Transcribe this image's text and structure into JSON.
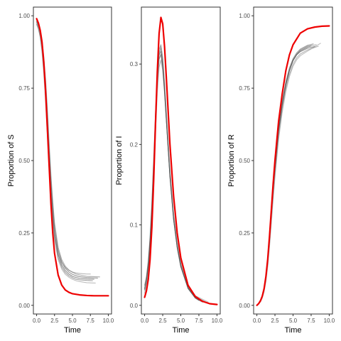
{
  "chart_data": [
    {
      "type": "line",
      "xlabel": "Time",
      "ylabel": "Proportion of S",
      "xlim": [
        0,
        10
      ],
      "ylim": [
        0,
        1
      ],
      "x_ticks": [
        0,
        2.5,
        5,
        7.5,
        10
      ],
      "x_tick_labels": [
        "0.0",
        "2.5",
        "5.0",
        "7.5",
        "10.0"
      ],
      "y_ticks": [
        0,
        0.25,
        0.5,
        0.75,
        1
      ],
      "y_tick_labels": [
        "0.00",
        "0.25",
        "0.50",
        "0.75",
        "1.00"
      ],
      "grid": false,
      "series": [
        {
          "role": "deterministic",
          "color": "#ee0000",
          "x": [
            0,
            0.25,
            0.5,
            0.75,
            1,
            1.25,
            1.5,
            1.75,
            2,
            2.25,
            2.5,
            3,
            3.5,
            4,
            4.5,
            5,
            6,
            7,
            8,
            9,
            10
          ],
          "y": [
            0.99,
            0.975,
            0.95,
            0.91,
            0.84,
            0.74,
            0.61,
            0.48,
            0.35,
            0.25,
            0.18,
            0.105,
            0.07,
            0.053,
            0.045,
            0.04,
            0.036,
            0.034,
            0.033,
            0.033,
            0.033
          ]
        },
        {
          "role": "stochastic",
          "color": "#333333",
          "x": [
            0,
            0.25,
            0.5,
            0.75,
            1,
            1.25,
            1.5,
            1.75,
            2,
            2.25,
            2.5,
            3,
            3.5,
            4,
            4.5,
            5,
            5.5,
            6,
            7,
            8
          ],
          "y": [
            0.98,
            0.965,
            0.94,
            0.9,
            0.84,
            0.75,
            0.64,
            0.52,
            0.41,
            0.32,
            0.25,
            0.175,
            0.14,
            0.12,
            0.108,
            0.1,
            0.096,
            0.093,
            0.091,
            0.09
          ]
        },
        {
          "role": "stochastic",
          "color": "#555555",
          "x": [
            0,
            0.25,
            0.5,
            0.75,
            1,
            1.25,
            1.5,
            1.75,
            2,
            2.25,
            2.5,
            3,
            3.5,
            4,
            4.5,
            5,
            5.5,
            6,
            7,
            7.8
          ],
          "y": [
            0.97,
            0.955,
            0.93,
            0.88,
            0.81,
            0.72,
            0.61,
            0.49,
            0.38,
            0.3,
            0.235,
            0.165,
            0.132,
            0.113,
            0.102,
            0.095,
            0.09,
            0.088,
            0.086,
            0.085
          ]
        },
        {
          "role": "stochastic",
          "color": "#444444",
          "x": [
            0,
            0.25,
            0.5,
            0.75,
            1,
            1.25,
            1.5,
            1.75,
            2,
            2.25,
            2.5,
            3,
            3.5,
            4,
            4.5,
            5,
            5.5,
            6,
            7,
            8.5
          ],
          "y": [
            0.985,
            0.97,
            0.945,
            0.91,
            0.85,
            0.77,
            0.66,
            0.54,
            0.43,
            0.34,
            0.27,
            0.19,
            0.15,
            0.128,
            0.115,
            0.107,
            0.102,
            0.099,
            0.096,
            0.094
          ]
        },
        {
          "role": "stochastic",
          "color": "#777777",
          "x": [
            0,
            0.25,
            0.5,
            0.75,
            1,
            1.25,
            1.5,
            1.75,
            2,
            2.25,
            2.5,
            3,
            3.5,
            4,
            4.5,
            5,
            5.5,
            6,
            7,
            7.5
          ],
          "y": [
            0.98,
            0.96,
            0.93,
            0.89,
            0.82,
            0.73,
            0.62,
            0.5,
            0.39,
            0.31,
            0.245,
            0.18,
            0.148,
            0.131,
            0.121,
            0.115,
            0.112,
            0.11,
            0.108,
            0.108
          ]
        },
        {
          "role": "stochastic",
          "color": "#888888",
          "x": [
            0,
            0.25,
            0.5,
            0.75,
            1,
            1.25,
            1.5,
            1.75,
            2,
            2.25,
            2.5,
            3,
            3.5,
            4,
            4.5,
            5,
            5.5,
            6,
            7,
            8.2
          ],
          "y": [
            0.975,
            0.955,
            0.925,
            0.875,
            0.8,
            0.7,
            0.59,
            0.47,
            0.365,
            0.285,
            0.225,
            0.158,
            0.125,
            0.107,
            0.097,
            0.09,
            0.085,
            0.082,
            0.078,
            0.077
          ]
        },
        {
          "role": "stochastic",
          "color": "#666666",
          "x": [
            0,
            0.25,
            0.5,
            0.75,
            1,
            1.25,
            1.5,
            1.75,
            2,
            2.25,
            2.5,
            3,
            3.5,
            4,
            4.5,
            5,
            5.5,
            6,
            7,
            8.8
          ],
          "y": [
            0.99,
            0.975,
            0.95,
            0.915,
            0.86,
            0.78,
            0.68,
            0.56,
            0.45,
            0.36,
            0.285,
            0.2,
            0.158,
            0.135,
            0.122,
            0.114,
            0.108,
            0.105,
            0.1,
            0.098
          ]
        }
      ]
    },
    {
      "type": "line",
      "xlabel": "Time",
      "ylabel": "Proportion of I",
      "xlim": [
        0,
        10
      ],
      "ylim": [
        0,
        0.36
      ],
      "x_ticks": [
        0,
        2.5,
        5,
        7.5,
        10
      ],
      "x_tick_labels": [
        "0.0",
        "2.5",
        "5.0",
        "7.5",
        "10.0"
      ],
      "y_ticks": [
        0,
        0.1,
        0.2,
        0.3
      ],
      "y_tick_labels": [
        "0.0",
        "0.1",
        "0.2",
        "0.3"
      ],
      "grid": false,
      "series": [
        {
          "role": "deterministic",
          "color": "#ee0000",
          "x": [
            0,
            0.25,
            0.5,
            0.75,
            1,
            1.25,
            1.5,
            1.75,
            2,
            2.25,
            2.5,
            2.75,
            3,
            3.5,
            4,
            4.5,
            5,
            6,
            7,
            8,
            9,
            10
          ],
          "y": [
            0.01,
            0.018,
            0.032,
            0.057,
            0.097,
            0.155,
            0.225,
            0.29,
            0.338,
            0.358,
            0.35,
            0.322,
            0.283,
            0.2,
            0.136,
            0.09,
            0.059,
            0.025,
            0.011,
            0.005,
            0.002,
            0.001
          ]
        },
        {
          "role": "stochastic",
          "color": "#333333",
          "x": [
            0,
            0.25,
            0.5,
            0.75,
            1,
            1.25,
            1.5,
            1.75,
            2,
            2.25,
            2.5,
            2.75,
            3,
            3.5,
            4,
            4.5,
            5,
            6,
            7,
            8
          ],
          "y": [
            0.02,
            0.03,
            0.048,
            0.076,
            0.117,
            0.17,
            0.228,
            0.277,
            0.306,
            0.312,
            0.296,
            0.266,
            0.23,
            0.16,
            0.107,
            0.072,
            0.048,
            0.021,
            0.009,
            0.004
          ]
        },
        {
          "role": "stochastic",
          "color": "#555555",
          "x": [
            0,
            0.25,
            0.5,
            0.75,
            1,
            1.25,
            1.5,
            1.75,
            2,
            2.25,
            2.5,
            2.75,
            3,
            3.5,
            4,
            4.5,
            5,
            6,
            7,
            7.8
          ],
          "y": [
            0.025,
            0.036,
            0.055,
            0.085,
            0.128,
            0.182,
            0.24,
            0.288,
            0.318,
            0.324,
            0.306,
            0.274,
            0.236,
            0.164,
            0.11,
            0.074,
            0.05,
            0.022,
            0.01,
            0.005
          ]
        },
        {
          "role": "stochastic",
          "color": "#777777",
          "x": [
            0,
            0.25,
            0.5,
            0.75,
            1,
            1.25,
            1.5,
            1.75,
            2,
            2.25,
            2.5,
            2.75,
            3,
            3.5,
            4,
            4.5,
            5,
            6,
            7,
            8.5
          ],
          "y": [
            0.015,
            0.024,
            0.04,
            0.066,
            0.104,
            0.156,
            0.214,
            0.264,
            0.296,
            0.305,
            0.292,
            0.264,
            0.23,
            0.162,
            0.11,
            0.075,
            0.051,
            0.024,
            0.011,
            0.004
          ]
        },
        {
          "role": "stochastic",
          "color": "#666666",
          "x": [
            0,
            0.25,
            0.5,
            0.75,
            1,
            1.25,
            1.5,
            1.75,
            2,
            2.25,
            2.5,
            2.75,
            3,
            3.5,
            4,
            4.5,
            5,
            6,
            7,
            8.2
          ],
          "y": [
            0.022,
            0.033,
            0.052,
            0.082,
            0.124,
            0.178,
            0.236,
            0.284,
            0.314,
            0.32,
            0.303,
            0.27,
            0.232,
            0.161,
            0.108,
            0.073,
            0.049,
            0.022,
            0.01,
            0.004
          ]
        },
        {
          "role": "stochastic",
          "color": "#888888",
          "x": [
            0,
            0.25,
            0.5,
            0.75,
            1,
            1.25,
            1.5,
            1.75,
            2,
            2.25,
            2.5,
            2.75,
            3,
            3.5,
            4,
            4.5,
            5,
            6,
            7,
            8.8
          ],
          "y": [
            0.018,
            0.028,
            0.045,
            0.072,
            0.112,
            0.166,
            0.226,
            0.278,
            0.312,
            0.322,
            0.308,
            0.278,
            0.242,
            0.17,
            0.116,
            0.079,
            0.054,
            0.025,
            0.012,
            0.004
          ]
        },
        {
          "role": "stochastic",
          "color": "#444444",
          "x": [
            0,
            0.25,
            0.5,
            0.75,
            1,
            1.25,
            1.5,
            1.75,
            2,
            2.25,
            2.5,
            2.75,
            3,
            3.5,
            4,
            4.5,
            5,
            6,
            7,
            7.5
          ],
          "y": [
            0.02,
            0.031,
            0.05,
            0.079,
            0.12,
            0.173,
            0.232,
            0.282,
            0.311,
            0.316,
            0.299,
            0.268,
            0.231,
            0.16,
            0.107,
            0.072,
            0.048,
            0.021,
            0.009,
            0.006
          ]
        }
      ]
    },
    {
      "type": "line",
      "xlabel": "Time",
      "ylabel": "Proportion of R",
      "xlim": [
        0,
        10
      ],
      "ylim": [
        0,
        1
      ],
      "x_ticks": [
        0,
        2.5,
        5,
        7.5,
        10
      ],
      "x_tick_labels": [
        "0.0",
        "2.5",
        "5.0",
        "7.5",
        "10.0"
      ],
      "y_ticks": [
        0,
        0.25,
        0.5,
        0.75,
        1
      ],
      "y_tick_labels": [
        "0.00",
        "0.25",
        "0.50",
        "0.75",
        "1.00"
      ],
      "grid": false,
      "series": [
        {
          "role": "deterministic",
          "color": "#ee0000",
          "x": [
            0,
            0.25,
            0.5,
            0.75,
            1,
            1.25,
            1.5,
            1.75,
            2,
            2.25,
            2.5,
            3,
            3.5,
            4,
            4.5,
            5,
            6,
            7,
            8,
            9,
            10
          ],
          "y": [
            0,
            0.006,
            0.016,
            0.032,
            0.058,
            0.1,
            0.16,
            0.24,
            0.33,
            0.42,
            0.5,
            0.635,
            0.73,
            0.81,
            0.865,
            0.9,
            0.94,
            0.955,
            0.961,
            0.964,
            0.965
          ]
        },
        {
          "role": "stochastic",
          "color": "#333333",
          "x": [
            0,
            0.25,
            0.5,
            0.75,
            1,
            1.25,
            1.5,
            1.75,
            2,
            2.25,
            2.5,
            3,
            3.5,
            4,
            4.5,
            5,
            5.5,
            6,
            7,
            8
          ],
          "y": [
            0,
            0.006,
            0.015,
            0.03,
            0.055,
            0.095,
            0.15,
            0.225,
            0.31,
            0.395,
            0.47,
            0.6,
            0.69,
            0.76,
            0.81,
            0.845,
            0.865,
            0.876,
            0.888,
            0.894
          ]
        },
        {
          "role": "stochastic",
          "color": "#555555",
          "x": [
            0,
            0.25,
            0.5,
            0.75,
            1,
            1.25,
            1.5,
            1.75,
            2,
            2.25,
            2.5,
            3,
            3.5,
            4,
            4.5,
            5,
            5.5,
            6,
            7,
            7.8
          ],
          "y": [
            0,
            0.007,
            0.017,
            0.034,
            0.062,
            0.105,
            0.165,
            0.24,
            0.325,
            0.41,
            0.485,
            0.615,
            0.705,
            0.772,
            0.82,
            0.852,
            0.872,
            0.885,
            0.898,
            0.903
          ]
        },
        {
          "role": "stochastic",
          "color": "#777777",
          "x": [
            0,
            0.25,
            0.5,
            0.75,
            1,
            1.25,
            1.5,
            1.75,
            2,
            2.25,
            2.5,
            3,
            3.5,
            4,
            4.5,
            5,
            5.5,
            6,
            7,
            8.5
          ],
          "y": [
            0,
            0.005,
            0.013,
            0.027,
            0.05,
            0.087,
            0.14,
            0.212,
            0.295,
            0.378,
            0.455,
            0.585,
            0.678,
            0.748,
            0.798,
            0.833,
            0.855,
            0.868,
            0.882,
            0.895
          ]
        },
        {
          "role": "stochastic",
          "color": "#666666",
          "x": [
            0,
            0.25,
            0.5,
            0.75,
            1,
            1.25,
            1.5,
            1.75,
            2,
            2.25,
            2.5,
            3,
            3.5,
            4,
            4.5,
            5,
            5.5,
            6,
            7,
            8.2
          ],
          "y": [
            0,
            0.006,
            0.016,
            0.032,
            0.058,
            0.1,
            0.158,
            0.232,
            0.318,
            0.402,
            0.478,
            0.608,
            0.698,
            0.766,
            0.815,
            0.848,
            0.868,
            0.882,
            0.895,
            0.9
          ]
        },
        {
          "role": "stochastic",
          "color": "#888888",
          "x": [
            0,
            0.25,
            0.5,
            0.75,
            1,
            1.25,
            1.5,
            1.75,
            2,
            2.25,
            2.5,
            3,
            3.5,
            4,
            4.5,
            5,
            5.5,
            6,
            7,
            8.8
          ],
          "y": [
            0,
            0.005,
            0.012,
            0.025,
            0.047,
            0.082,
            0.133,
            0.203,
            0.284,
            0.366,
            0.442,
            0.572,
            0.666,
            0.738,
            0.79,
            0.826,
            0.848,
            0.862,
            0.878,
            0.905
          ]
        },
        {
          "role": "stochastic",
          "color": "#444444",
          "x": [
            0,
            0.25,
            0.5,
            0.75,
            1,
            1.25,
            1.5,
            1.75,
            2,
            2.25,
            2.5,
            3,
            3.5,
            4,
            4.5,
            5,
            5.5,
            6,
            7,
            7.5
          ],
          "y": [
            0,
            0.006,
            0.015,
            0.031,
            0.057,
            0.098,
            0.155,
            0.229,
            0.314,
            0.398,
            0.474,
            0.604,
            0.694,
            0.763,
            0.812,
            0.846,
            0.866,
            0.879,
            0.892,
            0.896
          ]
        }
      ]
    }
  ]
}
